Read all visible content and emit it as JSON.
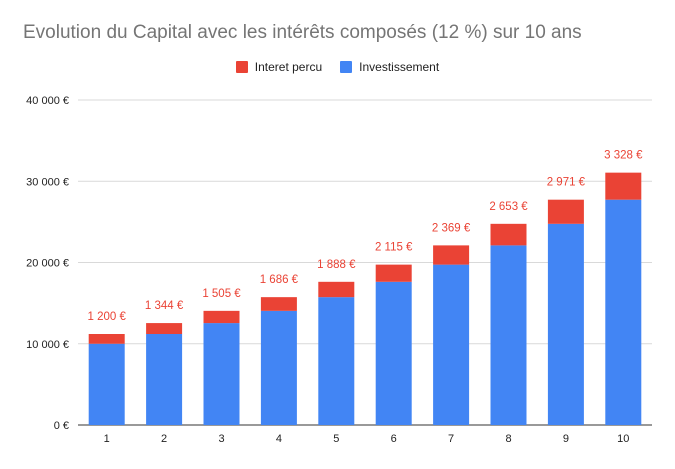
{
  "chart_data": {
    "type": "bar",
    "stacked": true,
    "title": "Evolution du Capital avec les intérêts composés (12 %) sur 10 ans",
    "xlabel": "",
    "ylabel": "",
    "categories": [
      "1",
      "2",
      "3",
      "4",
      "5",
      "6",
      "7",
      "8",
      "9",
      "10"
    ],
    "series": [
      {
        "name": "Investissement",
        "color": "#4285f4",
        "values": [
          10000,
          11200,
          12544,
          14049,
          15735,
          17623,
          19738,
          22107,
          24760,
          27731
        ]
      },
      {
        "name": "Interet percu",
        "color": "#ea4335",
        "values": [
          1200,
          1344,
          1505,
          1686,
          1888,
          2115,
          2369,
          2653,
          2971,
          3328
        ]
      }
    ],
    "data_labels": [
      "1 200 €",
      "1 344 €",
      "1 505 €",
      "1 686 €",
      "1 888 €",
      "2 115 €",
      "2 369 €",
      "2 653 €",
      "2 971 €",
      "3 328 €"
    ],
    "data_label_color": "#ea4335",
    "ylim": [
      0,
      40000
    ],
    "y_ticks": [
      0,
      10000,
      20000,
      30000,
      40000
    ],
    "y_tick_labels": [
      "0 €",
      "10 000 €",
      "20 000 €",
      "30 000 €",
      "40 000 €"
    ],
    "grid": true,
    "legend_position": "top",
    "legend_order": [
      "Interet percu",
      "Investissement"
    ]
  }
}
